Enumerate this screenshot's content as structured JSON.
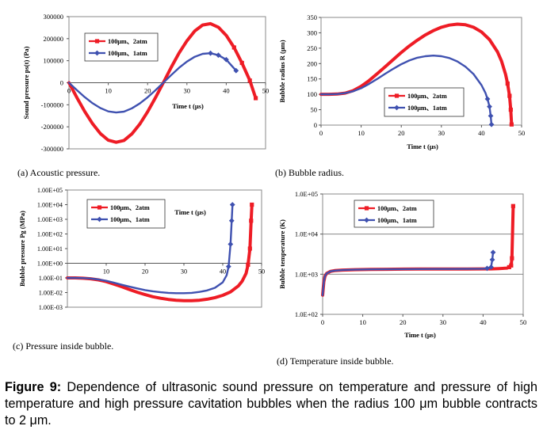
{
  "caption": {
    "label": "Figure 9:",
    "text": " Dependence of ultrasonic sound pressure on temperature and pressure of high temperature and high pressure cavitation bubbles when the radius 100 μm bubble contracts to 2 μm."
  },
  "colors": {
    "red": "#ee1c25",
    "blue": "#3f51b0"
  },
  "chart_data": [
    {
      "id": "a",
      "type": "line",
      "subcaption": "(a)  Acoustic pressure.",
      "ylabel": "Sound pressure  ps(t) (Pa)",
      "xlabel": "Time t (μs)",
      "xlim": [
        0,
        50
      ],
      "ylim": [
        -300000,
        300000
      ],
      "xticks": [
        0,
        10,
        20,
        30,
        40,
        50
      ],
      "xtick_labels": [
        "0",
        "10",
        "20",
        "30",
        "40",
        "50"
      ],
      "yticks": [
        300000,
        200000,
        100000,
        0,
        -100000,
        -200000,
        -300000
      ],
      "ytick_labels": [
        "300000",
        "200000",
        "100000",
        "0",
        "-100000",
        "-200000",
        "-300000"
      ],
      "grid": false,
      "legend_position": "top-left",
      "series": [
        {
          "name": "100μm、2atm",
          "color": "#ee1c25",
          "marker": "square",
          "x": [
            0,
            2,
            4,
            6,
            8,
            10,
            12,
            14,
            16,
            18,
            20,
            22,
            24,
            26,
            28,
            30,
            32,
            34,
            36,
            38,
            40,
            42,
            44,
            46,
            47.5
          ],
          "y": [
            0,
            -67000,
            -130000,
            -186000,
            -231000,
            -261000,
            -270000,
            -262000,
            -232000,
            -188000,
            -132000,
            -68000,
            0,
            70000,
            135000,
            190000,
            235000,
            262000,
            268000,
            252000,
            215000,
            160000,
            90000,
            10000,
            -70000
          ]
        },
        {
          "name": "100μm、1atm",
          "color": "#3f51b0",
          "marker": "diamond",
          "x": [
            0,
            2,
            4,
            6,
            8,
            10,
            12,
            14,
            16,
            18,
            20,
            22,
            24,
            26,
            28,
            30,
            32,
            34,
            36,
            38,
            40,
            42.5
          ],
          "y": [
            0,
            -33000,
            -65000,
            -93000,
            -115000,
            -130000,
            -135000,
            -131000,
            -116000,
            -94000,
            -66000,
            -34000,
            0,
            35000,
            68000,
            96000,
            118000,
            131000,
            134000,
            125000,
            105000,
            55000
          ]
        }
      ]
    },
    {
      "id": "b",
      "type": "line",
      "subcaption": "(b) Bubble radius.",
      "ylabel": "Bubble radius R (μm)",
      "xlabel": "Time t (μs)",
      "xlim": [
        0,
        50
      ],
      "ylim": [
        0,
        350
      ],
      "xticks": [
        0,
        10,
        20,
        30,
        40,
        50
      ],
      "xtick_labels": [
        "0",
        "10",
        "20",
        "30",
        "40",
        "50"
      ],
      "yticks": [
        0,
        50,
        100,
        150,
        200,
        250,
        300,
        350
      ],
      "ytick_labels": [
        "0",
        "50",
        "100",
        "150",
        "200",
        "250",
        "300",
        "350"
      ],
      "grid": false,
      "legend_position": "center-right",
      "series": [
        {
          "name": "100μm、2atm",
          "color": "#ee1c25",
          "marker": "square",
          "x": [
            0,
            2,
            4,
            6,
            8,
            10,
            12,
            14,
            16,
            18,
            20,
            22,
            24,
            26,
            28,
            30,
            32,
            34,
            36,
            38,
            40,
            42,
            44,
            45,
            46,
            46.5,
            47,
            47.3,
            47.5
          ],
          "y": [
            100,
            100,
            101,
            104,
            112,
            126,
            145,
            167,
            190,
            213,
            236,
            257,
            276,
            293,
            307,
            318,
            325,
            328,
            326,
            318,
            303,
            278,
            238,
            208,
            165,
            135,
            95,
            50,
            2
          ]
        },
        {
          "name": "100μm、1atm",
          "color": "#3f51b0",
          "marker": "diamond",
          "x": [
            0,
            2,
            4,
            6,
            8,
            10,
            12,
            14,
            16,
            18,
            20,
            22,
            24,
            26,
            28,
            30,
            32,
            34,
            36,
            38,
            40,
            41,
            41.5,
            42,
            42.3,
            42.5
          ],
          "y": [
            100,
            100,
            101,
            104,
            110,
            120,
            134,
            150,
            167,
            183,
            198,
            210,
            219,
            224,
            226,
            224,
            218,
            207,
            190,
            166,
            130,
            104,
            85,
            60,
            30,
            2
          ]
        }
      ]
    },
    {
      "id": "c",
      "type": "line",
      "subcaption": "(c) Pressure inside bubble.",
      "ylabel": "Bubble pressure  Pg (MPa)",
      "xlabel": "Time t (μs)",
      "yscale": "log",
      "xlim": [
        0,
        50
      ],
      "ylim": [
        0.001,
        100000
      ],
      "xticks": [
        10,
        20,
        30,
        40,
        50
      ],
      "xtick_labels": [
        "10",
        "20",
        "30",
        "40",
        "50"
      ],
      "yticks": [
        100000,
        10000,
        1000,
        100,
        10,
        1,
        0.1,
        0.01,
        0.001
      ],
      "ytick_labels": [
        "1.00E+05",
        "1.00E+04",
        "1.00E+03",
        "1.00E+02",
        "1.00E+01",
        "1.00E+00",
        "1.00E-01",
        "1.00E-02",
        "1.00E-03"
      ],
      "grid": false,
      "legend_position": "top-left",
      "series": [
        {
          "name": "100μm、2atm",
          "color": "#ee1c25",
          "marker": "square",
          "x": [
            0,
            2,
            4,
            6,
            8,
            10,
            12,
            14,
            16,
            18,
            20,
            22,
            24,
            26,
            28,
            30,
            32,
            34,
            36,
            38,
            40,
            42,
            44,
            45,
            46,
            46.5,
            47,
            47.3,
            47.5
          ],
          "y": [
            0.1,
            0.1,
            0.095,
            0.087,
            0.073,
            0.056,
            0.038,
            0.025,
            0.016,
            0.0105,
            0.0072,
            0.0052,
            0.0041,
            0.0034,
            0.003,
            0.0028,
            0.0028,
            0.003,
            0.0035,
            0.0045,
            0.0065,
            0.011,
            0.028,
            0.06,
            0.2,
            0.8,
            10,
            800,
            10000
          ]
        },
        {
          "name": "100μm、1atm",
          "color": "#3f51b0",
          "marker": "diamond",
          "x": [
            0,
            2,
            4,
            6,
            8,
            10,
            12,
            14,
            16,
            18,
            20,
            22,
            24,
            26,
            28,
            30,
            32,
            34,
            36,
            38,
            40,
            41,
            41.5,
            42,
            42.3,
            42.5
          ],
          "y": [
            0.1,
            0.1,
            0.097,
            0.09,
            0.078,
            0.063,
            0.047,
            0.034,
            0.025,
            0.019,
            0.0148,
            0.0122,
            0.0105,
            0.0095,
            0.009,
            0.009,
            0.0095,
            0.011,
            0.014,
            0.021,
            0.05,
            0.15,
            0.6,
            20,
            800,
            10000
          ]
        }
      ]
    },
    {
      "id": "d",
      "type": "line",
      "subcaption": "(d) Temperature inside bubble.",
      "ylabel": "Bubble temperature  (K)",
      "xlabel": "Time t (μs)",
      "yscale": "log",
      "xlim": [
        0,
        50
      ],
      "ylim": [
        100,
        100000
      ],
      "xticks": [
        0,
        10,
        20,
        30,
        40,
        50
      ],
      "xtick_labels": [
        "0",
        "10",
        "20",
        "30",
        "40",
        "50"
      ],
      "yticks": [
        100000,
        10000,
        1000,
        100
      ],
      "ytick_labels": [
        "1.0E+05",
        "1.0E+04",
        "1.0E+03",
        "1.0E+02"
      ],
      "grid": true,
      "legend_position": "top-center",
      "series": [
        {
          "name": "100μm、2atm",
          "color": "#ee1c25",
          "marker": "square",
          "x": [
            0,
            0.3,
            0.6,
            1,
            2,
            3,
            5,
            8,
            12,
            16,
            20,
            24,
            28,
            32,
            36,
            40,
            42,
            44,
            46,
            46.5,
            47,
            47.2,
            47.5
          ],
          "y": [
            300,
            650,
            900,
            1050,
            1180,
            1230,
            1270,
            1300,
            1320,
            1330,
            1340,
            1345,
            1350,
            1350,
            1350,
            1355,
            1360,
            1380,
            1420,
            1500,
            1650,
            2500,
            50000
          ]
        },
        {
          "name": "100μm、1atm",
          "color": "#3f51b0",
          "marker": "diamond",
          "x": [
            0,
            0.3,
            0.6,
            1,
            2,
            3,
            5,
            8,
            12,
            16,
            20,
            24,
            28,
            32,
            36,
            40,
            41,
            42,
            42.3,
            42.5
          ],
          "y": [
            300,
            650,
            900,
            1050,
            1180,
            1230,
            1270,
            1300,
            1320,
            1330,
            1340,
            1345,
            1350,
            1350,
            1355,
            1370,
            1400,
            1500,
            2300,
            3500
          ]
        }
      ]
    }
  ]
}
